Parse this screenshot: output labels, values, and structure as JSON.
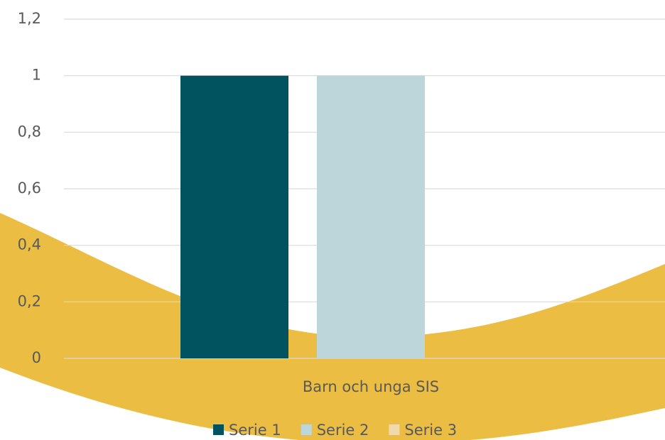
{
  "chart_data": {
    "type": "bar",
    "categories": [
      "Barn och unga SIS"
    ],
    "series": [
      {
        "name": "Serie 1",
        "color": "#00535f",
        "values": [
          1
        ]
      },
      {
        "name": "Serie 2",
        "color": "#bcd6d9",
        "values": [
          1
        ]
      },
      {
        "name": "Serie 3",
        "color": "#f2d9ad",
        "values": [
          0
        ]
      }
    ],
    "ylim": [
      0,
      1.2
    ],
    "yticks": [
      0,
      {
        "value": 0.2,
        "label": "0,2"
      },
      {
        "value": 0.4,
        "label": "0,4"
      },
      {
        "value": 0.6,
        "label": "0,6"
      },
      {
        "value": 0.8,
        "label": "0,8"
      },
      1,
      {
        "value": 1.2,
        "label": "1,2"
      }
    ],
    "grid": true,
    "legend": "bottom"
  }
}
